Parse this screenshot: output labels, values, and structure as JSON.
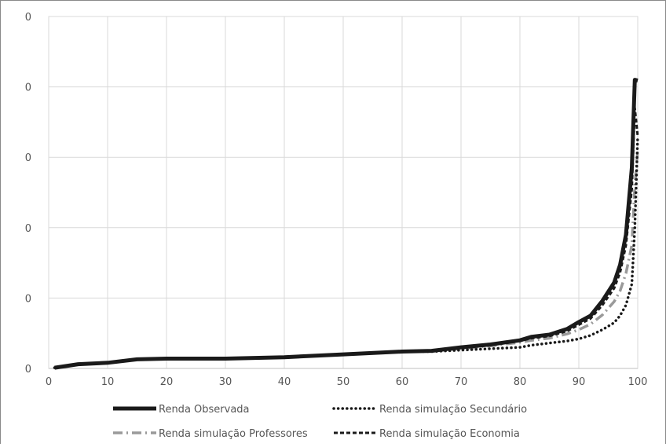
{
  "chart_data": {
    "type": "line",
    "title": "",
    "xlabel": "",
    "ylabel": "",
    "xlim": [
      0,
      100
    ],
    "ylim": [
      0,
      5
    ],
    "x_ticks": [
      "0",
      "10",
      "20",
      "30",
      "40",
      "50",
      "60",
      "70",
      "80",
      "90",
      "100"
    ],
    "y_ticks": [
      "0",
      "0",
      "0",
      "0",
      "0",
      "0"
    ],
    "grid": true,
    "legend_position": "bottom",
    "series": [
      {
        "name": "Renda Observada",
        "style": "solid-thick",
        "color": "#1a1a1a",
        "x": [
          1,
          5,
          10,
          15,
          20,
          30,
          40,
          50,
          60,
          65,
          70,
          75,
          80,
          82,
          85,
          88,
          90,
          92,
          94,
          96,
          97,
          98,
          99,
          99.5,
          100
        ],
        "y": [
          0.01,
          0.06,
          0.08,
          0.13,
          0.14,
          0.14,
          0.16,
          0.2,
          0.24,
          0.25,
          0.3,
          0.34,
          0.4,
          0.45,
          0.48,
          0.56,
          0.66,
          0.75,
          0.96,
          1.22,
          1.47,
          1.9,
          2.85,
          4.1,
          4.09
        ]
      },
      {
        "name": "Renda simulação Secundário",
        "style": "dotted",
        "color": "#1a1a1a",
        "x": [
          1,
          5,
          10,
          15,
          20,
          30,
          40,
          50,
          60,
          65,
          70,
          75,
          80,
          82,
          85,
          88,
          90,
          92,
          94,
          96,
          97,
          98,
          99,
          99.5,
          100
        ],
        "y": [
          0.01,
          0.06,
          0.08,
          0.13,
          0.14,
          0.14,
          0.16,
          0.2,
          0.24,
          0.24,
          0.26,
          0.28,
          0.3,
          0.33,
          0.36,
          0.39,
          0.42,
          0.47,
          0.55,
          0.65,
          0.75,
          0.9,
          1.2,
          2.0,
          3.3
        ]
      },
      {
        "name": "Renda simulação Professores",
        "style": "dash-dot-gray",
        "color": "#9a9a9a",
        "x": [
          1,
          5,
          10,
          15,
          20,
          30,
          40,
          50,
          60,
          65,
          70,
          75,
          80,
          82,
          85,
          88,
          90,
          92,
          94,
          96,
          97,
          98,
          99,
          99.5,
          100
        ],
        "y": [
          0.01,
          0.06,
          0.08,
          0.13,
          0.14,
          0.14,
          0.16,
          0.2,
          0.24,
          0.25,
          0.28,
          0.32,
          0.37,
          0.4,
          0.43,
          0.49,
          0.55,
          0.63,
          0.76,
          0.95,
          1.1,
          1.35,
          1.75,
          2.6,
          3.1
        ]
      },
      {
        "name": "Renda simulação Economia",
        "style": "dashed",
        "color": "#1a1a1a",
        "x": [
          1,
          5,
          10,
          15,
          20,
          30,
          40,
          50,
          60,
          65,
          70,
          75,
          80,
          82,
          85,
          88,
          90,
          92,
          94,
          96,
          97,
          98,
          99,
          99.5,
          100
        ],
        "y": [
          0.01,
          0.06,
          0.08,
          0.13,
          0.14,
          0.14,
          0.16,
          0.2,
          0.24,
          0.25,
          0.29,
          0.33,
          0.39,
          0.43,
          0.46,
          0.53,
          0.62,
          0.71,
          0.9,
          1.14,
          1.36,
          1.75,
          2.55,
          3.7,
          3.3
        ]
      }
    ]
  }
}
